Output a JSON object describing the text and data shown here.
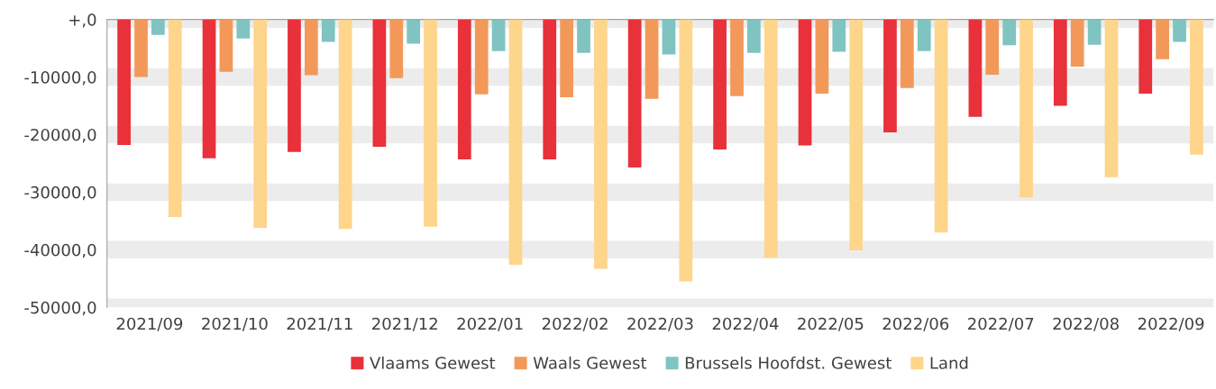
{
  "chart_data": {
    "type": "bar",
    "categories": [
      "2021/09",
      "2021/10",
      "2021/11",
      "2021/12",
      "2022/01",
      "2022/02",
      "2022/03",
      "2022/04",
      "2022/05",
      "2022/06",
      "2022/07",
      "2022/08",
      "2022/09"
    ],
    "series": [
      {
        "name": "Vlaams Gewest",
        "color": "#e8313a",
        "values": [
          -21800,
          -24100,
          -23000,
          -22100,
          -24300,
          -24300,
          -25700,
          -22600,
          -21900,
          -19600,
          -16900,
          -15000,
          -12900
        ]
      },
      {
        "name": "Waals Gewest",
        "color": "#f2995a",
        "values": [
          -10000,
          -9100,
          -9700,
          -10200,
          -13000,
          -13500,
          -13800,
          -13300,
          -12900,
          -11900,
          -9600,
          -8200,
          -6900
        ]
      },
      {
        "name": "Brussels Hoofdst. Gewest",
        "color": "#7fc4c0",
        "values": [
          -2700,
          -3300,
          -3900,
          -4200,
          -5500,
          -5800,
          -6100,
          -5800,
          -5600,
          -5500,
          -4500,
          -4400,
          -3900
        ]
      },
      {
        "name": "Land",
        "color": "#fdd58b",
        "values": [
          -34300,
          -36200,
          -36400,
          -36000,
          -42600,
          -43300,
          -45500,
          -41400,
          -40100,
          -37000,
          -30900,
          -27400,
          -23500
        ]
      }
    ],
    "ylim": [
      -50000,
      0
    ],
    "yticks": [
      {
        "value": 0,
        "label": "+,0"
      },
      {
        "value": -10000,
        "label": "-10000,0"
      },
      {
        "value": -20000,
        "label": "-20000,0"
      },
      {
        "value": -30000,
        "label": "-30000,0"
      },
      {
        "value": -40000,
        "label": "-40000,0"
      },
      {
        "value": -50000,
        "label": "-50000,0"
      }
    ],
    "grid": "y",
    "legend": "bottom"
  }
}
